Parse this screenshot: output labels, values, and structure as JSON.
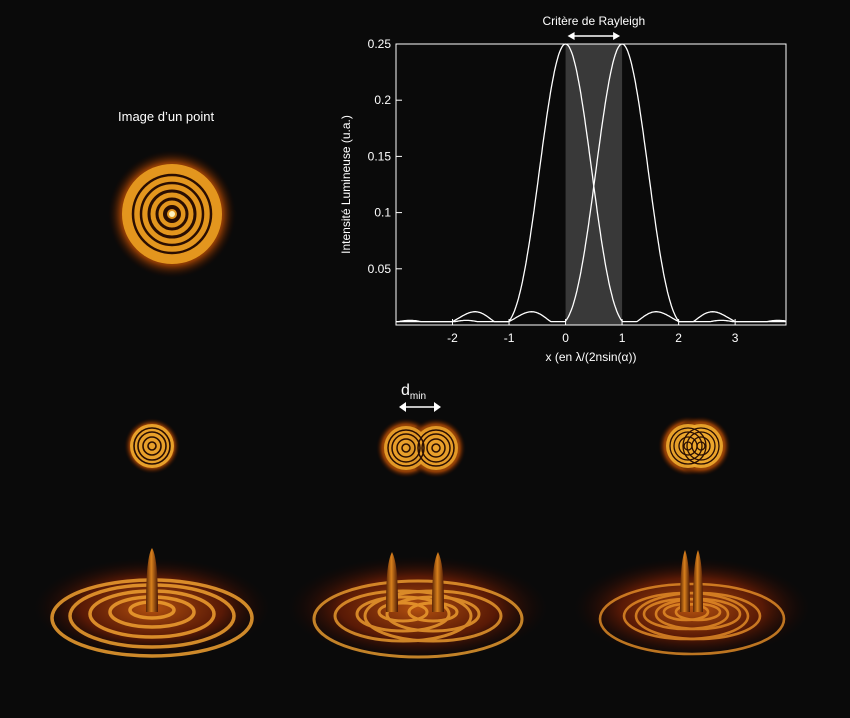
{
  "single_point_title": "Image d’un point",
  "dmin_label": {
    "main": "d",
    "sub": "min"
  },
  "chart_data": {
    "type": "line",
    "title": "Critère de Rayleigh",
    "xlabel": "x (en λ/(2nsin(α))",
    "ylabel": "Intensité Lumineuse (u.a.)",
    "xlim": [
      -3.0,
      3.9
    ],
    "ylim": [
      0,
      0.25
    ],
    "xticks": [
      -2,
      -1,
      0,
      1,
      2,
      3
    ],
    "xtick_labels": [
      "-2",
      "-1",
      "0",
      "1",
      "2",
      "3"
    ],
    "yticks": [
      0.05,
      0.1,
      0.15,
      0.2,
      0.25
    ],
    "ytick_labels": [
      "0.05",
      "0.1",
      "0.15",
      "0.2",
      "0.25"
    ],
    "grid": false,
    "series": [
      {
        "center": 0,
        "peak": 0.25
      },
      {
        "center": 1,
        "peak": 0.25
      }
    ],
    "highlight_band": [
      0,
      1
    ]
  },
  "colors": {
    "background": "#0a0a0a",
    "curve": "#ffffff",
    "band": "#4a4a4a",
    "glow_outer": "#7a2a00",
    "glow_mid": "#c86a08",
    "glow_core": "#ffd27a"
  }
}
